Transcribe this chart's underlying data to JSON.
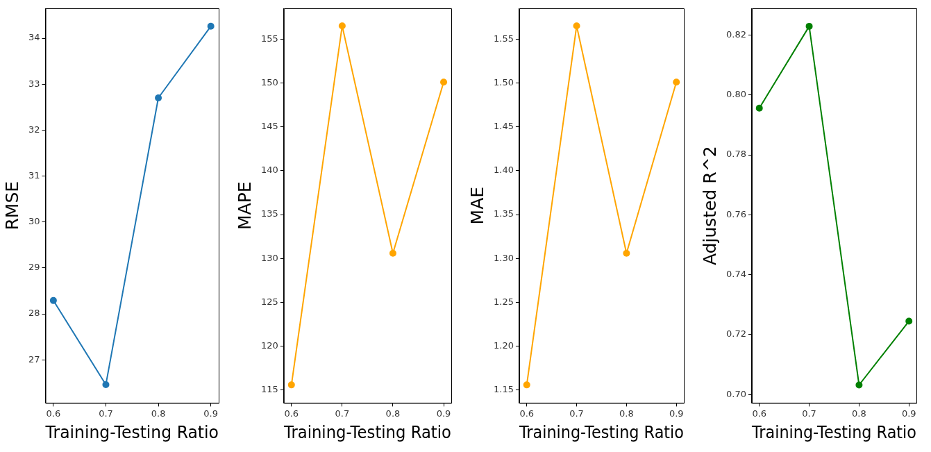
{
  "chart_data": [
    {
      "type": "line",
      "xlabel": "Training-Testing Ratio",
      "ylabel": "RMSE",
      "x": [
        0.6,
        0.7,
        0.8,
        0.9
      ],
      "xlim": [
        0.585,
        0.915
      ],
      "xticks": [
        0.6,
        0.7,
        0.8,
        0.9
      ],
      "ylim": [
        26.06,
        34.65
      ],
      "yticks": [
        27,
        28,
        29,
        30,
        31,
        32,
        33,
        34
      ],
      "marker": "circle",
      "series": [
        {
          "color": "#1f77b4",
          "values": [
            28.29,
            26.46,
            32.7,
            34.26
          ]
        }
      ]
    },
    {
      "type": "line",
      "xlabel": "Training-Testing Ratio",
      "ylabel": "MAPE",
      "x": [
        0.6,
        0.7,
        0.8,
        0.9
      ],
      "xlim": [
        0.585,
        0.915
      ],
      "xticks": [
        0.6,
        0.7,
        0.8,
        0.9
      ],
      "ylim": [
        113.54,
        158.5
      ],
      "yticks": [
        115,
        120,
        125,
        130,
        135,
        140,
        145,
        150,
        155
      ],
      "marker": "circle",
      "series": [
        {
          "color": "#ffa500",
          "values": [
            115.6,
            156.5,
            130.6,
            150.1
          ]
        }
      ]
    },
    {
      "type": "line",
      "xlabel": "Training-Testing Ratio",
      "ylabel": "MAE",
      "x": [
        0.6,
        0.7,
        0.8,
        0.9
      ],
      "xlim": [
        0.585,
        0.915
      ],
      "xticks": [
        0.6,
        0.7,
        0.8,
        0.9
      ],
      "ylim": [
        1.1354,
        1.585
      ],
      "yticks": [
        {
          "value": 1.15,
          "label": "1.15"
        },
        {
          "value": 1.2,
          "label": "1.20"
        },
        {
          "value": 1.25,
          "label": "1.25"
        },
        {
          "value": 1.3,
          "label": "1.30"
        },
        {
          "value": 1.35,
          "label": "1.35"
        },
        {
          "value": 1.4,
          "label": "1.40"
        },
        {
          "value": 1.45,
          "label": "1.45"
        },
        {
          "value": 1.5,
          "label": "1.50"
        },
        {
          "value": 1.55,
          "label": "1.55"
        }
      ],
      "marker": "circle",
      "series": [
        {
          "color": "#ffa500",
          "values": [
            1.156,
            1.565,
            1.306,
            1.501
          ]
        }
      ]
    },
    {
      "type": "line",
      "xlabel": "Training-Testing Ratio",
      "ylabel": "Adjusted R^2",
      "x": [
        0.6,
        0.7,
        0.8,
        0.9
      ],
      "xlim": [
        0.585,
        0.915
      ],
      "xticks": [
        0.6,
        0.7,
        0.8,
        0.9
      ],
      "ylim": [
        0.6972,
        0.8289
      ],
      "yticks": [
        {
          "value": 0.7,
          "label": "0.70"
        },
        {
          "value": 0.72,
          "label": "0.72"
        },
        {
          "value": 0.74,
          "label": "0.74"
        },
        {
          "value": 0.76,
          "label": "0.76"
        },
        {
          "value": 0.78,
          "label": "0.78"
        },
        {
          "value": 0.8,
          "label": "0.80"
        },
        {
          "value": 0.82,
          "label": "0.82"
        }
      ],
      "marker": "circle",
      "series": [
        {
          "color": "#008000",
          "values": [
            0.7956,
            0.8229,
            0.7032,
            0.7245
          ]
        }
      ]
    }
  ]
}
